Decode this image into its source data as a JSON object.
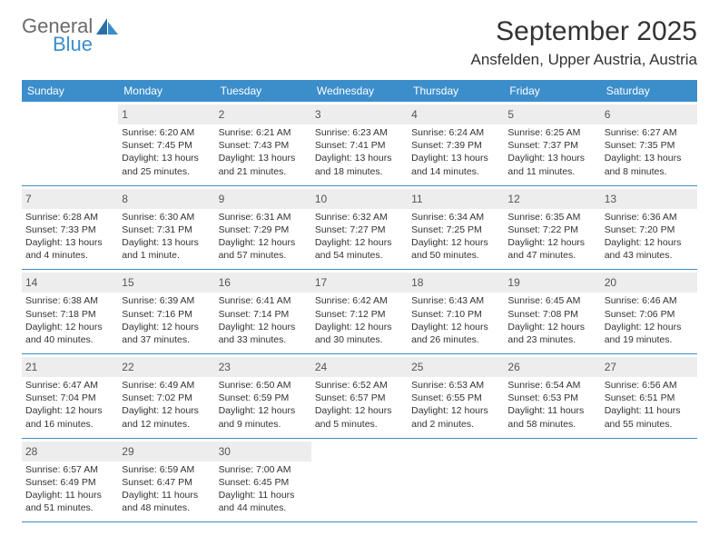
{
  "logo": {
    "text1": "General",
    "text2": "Blue"
  },
  "title": "September 2025",
  "location": "Ansfelden, Upper Austria, Austria",
  "weekdays": [
    "Sunday",
    "Monday",
    "Tuesday",
    "Wednesday",
    "Thursday",
    "Friday",
    "Saturday"
  ],
  "header_bg": "#3c8ecb",
  "header_text_color": "#ffffff",
  "daynum_bg": "#ededed",
  "border_color": "#3c8ecb",
  "fontsize_title": 30,
  "fontsize_location": 17,
  "fontsize_weekday": 12,
  "fontsize_daynum": 12,
  "fontsize_dayinfo": 10.5,
  "weeks": [
    [
      {
        "num": "",
        "lines": []
      },
      {
        "num": "1",
        "lines": [
          "Sunrise: 6:20 AM",
          "Sunset: 7:45 PM",
          "Daylight: 13 hours and 25 minutes."
        ]
      },
      {
        "num": "2",
        "lines": [
          "Sunrise: 6:21 AM",
          "Sunset: 7:43 PM",
          "Daylight: 13 hours and 21 minutes."
        ]
      },
      {
        "num": "3",
        "lines": [
          "Sunrise: 6:23 AM",
          "Sunset: 7:41 PM",
          "Daylight: 13 hours and 18 minutes."
        ]
      },
      {
        "num": "4",
        "lines": [
          "Sunrise: 6:24 AM",
          "Sunset: 7:39 PM",
          "Daylight: 13 hours and 14 minutes."
        ]
      },
      {
        "num": "5",
        "lines": [
          "Sunrise: 6:25 AM",
          "Sunset: 7:37 PM",
          "Daylight: 13 hours and 11 minutes."
        ]
      },
      {
        "num": "6",
        "lines": [
          "Sunrise: 6:27 AM",
          "Sunset: 7:35 PM",
          "Daylight: 13 hours and 8 minutes."
        ]
      }
    ],
    [
      {
        "num": "7",
        "lines": [
          "Sunrise: 6:28 AM",
          "Sunset: 7:33 PM",
          "Daylight: 13 hours and 4 minutes."
        ]
      },
      {
        "num": "8",
        "lines": [
          "Sunrise: 6:30 AM",
          "Sunset: 7:31 PM",
          "Daylight: 13 hours and 1 minute."
        ]
      },
      {
        "num": "9",
        "lines": [
          "Sunrise: 6:31 AM",
          "Sunset: 7:29 PM",
          "Daylight: 12 hours and 57 minutes."
        ]
      },
      {
        "num": "10",
        "lines": [
          "Sunrise: 6:32 AM",
          "Sunset: 7:27 PM",
          "Daylight: 12 hours and 54 minutes."
        ]
      },
      {
        "num": "11",
        "lines": [
          "Sunrise: 6:34 AM",
          "Sunset: 7:25 PM",
          "Daylight: 12 hours and 50 minutes."
        ]
      },
      {
        "num": "12",
        "lines": [
          "Sunrise: 6:35 AM",
          "Sunset: 7:22 PM",
          "Daylight: 12 hours and 47 minutes."
        ]
      },
      {
        "num": "13",
        "lines": [
          "Sunrise: 6:36 AM",
          "Sunset: 7:20 PM",
          "Daylight: 12 hours and 43 minutes."
        ]
      }
    ],
    [
      {
        "num": "14",
        "lines": [
          "Sunrise: 6:38 AM",
          "Sunset: 7:18 PM",
          "Daylight: 12 hours and 40 minutes."
        ]
      },
      {
        "num": "15",
        "lines": [
          "Sunrise: 6:39 AM",
          "Sunset: 7:16 PM",
          "Daylight: 12 hours and 37 minutes."
        ]
      },
      {
        "num": "16",
        "lines": [
          "Sunrise: 6:41 AM",
          "Sunset: 7:14 PM",
          "Daylight: 12 hours and 33 minutes."
        ]
      },
      {
        "num": "17",
        "lines": [
          "Sunrise: 6:42 AM",
          "Sunset: 7:12 PM",
          "Daylight: 12 hours and 30 minutes."
        ]
      },
      {
        "num": "18",
        "lines": [
          "Sunrise: 6:43 AM",
          "Sunset: 7:10 PM",
          "Daylight: 12 hours and 26 minutes."
        ]
      },
      {
        "num": "19",
        "lines": [
          "Sunrise: 6:45 AM",
          "Sunset: 7:08 PM",
          "Daylight: 12 hours and 23 minutes."
        ]
      },
      {
        "num": "20",
        "lines": [
          "Sunrise: 6:46 AM",
          "Sunset: 7:06 PM",
          "Daylight: 12 hours and 19 minutes."
        ]
      }
    ],
    [
      {
        "num": "21",
        "lines": [
          "Sunrise: 6:47 AM",
          "Sunset: 7:04 PM",
          "Daylight: 12 hours and 16 minutes."
        ]
      },
      {
        "num": "22",
        "lines": [
          "Sunrise: 6:49 AM",
          "Sunset: 7:02 PM",
          "Daylight: 12 hours and 12 minutes."
        ]
      },
      {
        "num": "23",
        "lines": [
          "Sunrise: 6:50 AM",
          "Sunset: 6:59 PM",
          "Daylight: 12 hours and 9 minutes."
        ]
      },
      {
        "num": "24",
        "lines": [
          "Sunrise: 6:52 AM",
          "Sunset: 6:57 PM",
          "Daylight: 12 hours and 5 minutes."
        ]
      },
      {
        "num": "25",
        "lines": [
          "Sunrise: 6:53 AM",
          "Sunset: 6:55 PM",
          "Daylight: 12 hours and 2 minutes."
        ]
      },
      {
        "num": "26",
        "lines": [
          "Sunrise: 6:54 AM",
          "Sunset: 6:53 PM",
          "Daylight: 11 hours and 58 minutes."
        ]
      },
      {
        "num": "27",
        "lines": [
          "Sunrise: 6:56 AM",
          "Sunset: 6:51 PM",
          "Daylight: 11 hours and 55 minutes."
        ]
      }
    ],
    [
      {
        "num": "28",
        "lines": [
          "Sunrise: 6:57 AM",
          "Sunset: 6:49 PM",
          "Daylight: 11 hours and 51 minutes."
        ]
      },
      {
        "num": "29",
        "lines": [
          "Sunrise: 6:59 AM",
          "Sunset: 6:47 PM",
          "Daylight: 11 hours and 48 minutes."
        ]
      },
      {
        "num": "30",
        "lines": [
          "Sunrise: 7:00 AM",
          "Sunset: 6:45 PM",
          "Daylight: 11 hours and 44 minutes."
        ]
      },
      {
        "num": "",
        "lines": []
      },
      {
        "num": "",
        "lines": []
      },
      {
        "num": "",
        "lines": []
      },
      {
        "num": "",
        "lines": []
      }
    ]
  ]
}
